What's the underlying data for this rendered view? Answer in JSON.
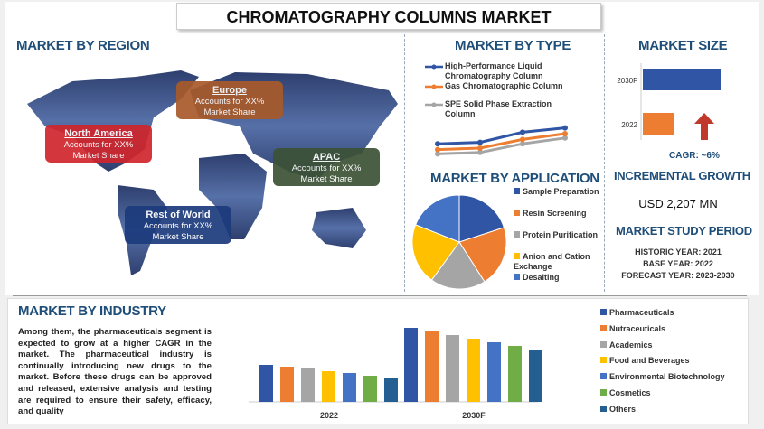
{
  "title": "CHROMATOGRAPHY COLUMNS MARKET",
  "region": {
    "heading": "MARKET BY REGION",
    "boxes": [
      {
        "name": "North America",
        "text1": "Accounts for XX%",
        "text2": "Market Share",
        "color": "#d0262c"
      },
      {
        "name": "Europe",
        "text1": "Accounts for XX%",
        "text2": "Market Share",
        "color": "#a85a2a"
      },
      {
        "name": "APAC",
        "text1": "Accounts for XX%",
        "text2": "Market Share",
        "color": "#3c5236"
      },
      {
        "name": "Rest of World",
        "text1": "Accounts for XX%",
        "text2": "Market Share",
        "color": "#1c3b7c"
      }
    ]
  },
  "type": {
    "heading": "MARKET BY TYPE"
  },
  "application": {
    "heading": "MARKET BY APPLICATION"
  },
  "size": {
    "heading": "MARKET SIZE",
    "cagr": "CAGR:  ~6%"
  },
  "growth": {
    "heading": "INCREMENTAL GROWTH",
    "value": "USD 2,207 MN"
  },
  "period": {
    "heading": "MARKET STUDY PERIOD",
    "historic": "HISTORIC YEAR: 2021",
    "base": "BASE YEAR: 2022",
    "forecast": "FORECAST YEAR: 2023-2030"
  },
  "industry": {
    "heading": "MARKET BY INDUSTRY",
    "text": "Among them, the pharmaceuticals segment is expected to grow at a higher CAGR in the market. The pharmaceutical industry is continually introducing new drugs to the market. Before these drugs can be approved and released, extensive analysis and testing are required to ensure their safety, efficacy, and quality"
  },
  "chart_data": [
    {
      "type": "line",
      "x": [
        1,
        2,
        3,
        4
      ],
      "series": [
        {
          "name": "High-Performance Liquid Chromatography Column",
          "values": [
            3.3,
            3.4,
            4.1,
            4.4
          ],
          "color": "#2f55a4"
        },
        {
          "name": "Gas Chromatographic Column",
          "values": [
            2.9,
            3.0,
            3.6,
            4.0
          ],
          "color": "#ed7d31"
        },
        {
          "name": "SPE Solid Phase Extraction Column",
          "values": [
            2.6,
            2.7,
            3.3,
            3.7
          ],
          "color": "#a5a5a5"
        }
      ]
    },
    {
      "type": "pie",
      "categories": [
        "Sample Preparation",
        "Resin Screening",
        "Protein Purification",
        "Anion and Cation Exchange",
        "Desalting"
      ],
      "values": [
        20,
        21,
        19,
        21,
        19
      ],
      "colors": [
        "#2f55a4",
        "#ed7d31",
        "#a5a5a5",
        "#ffc000",
        "#4472c4"
      ]
    },
    {
      "type": "bar",
      "orientation": "horizontal",
      "categories": [
        "2030F",
        "2022"
      ],
      "values": [
        1.0,
        0.4
      ],
      "colors": [
        "#2f55a4",
        "#ed7d31"
      ]
    },
    {
      "type": "bar",
      "categories": [
        "2022",
        "2030F"
      ],
      "series": [
        {
          "name": "Pharmaceuticals",
          "values": [
            41,
            82
          ],
          "color": "#2f55a4"
        },
        {
          "name": "Nutraceuticals",
          "values": [
            39,
            78
          ],
          "color": "#ed7d31"
        },
        {
          "name": "Academics",
          "values": [
            37,
            74
          ],
          "color": "#a5a5a5"
        },
        {
          "name": "Food and Beverages",
          "values": [
            34,
            70
          ],
          "color": "#ffc000"
        },
        {
          "name": "Environmental Biotechnology",
          "values": [
            32,
            66
          ],
          "color": "#4472c4"
        },
        {
          "name": "Cosmetics",
          "values": [
            29,
            62
          ],
          "color": "#70ad47"
        },
        {
          "name": "Others",
          "values": [
            26,
            58
          ],
          "color": "#255e91"
        }
      ]
    }
  ]
}
